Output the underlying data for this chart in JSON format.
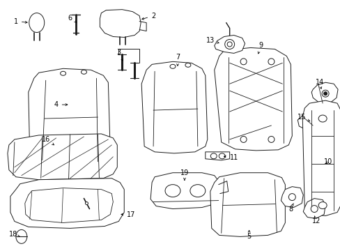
{
  "background_color": "#ffffff",
  "line_color": "#1a1a1a",
  "label_color": "#000000",
  "figure_width": 4.89,
  "figure_height": 3.6,
  "dpi": 100,
  "fontsize": 7.0
}
